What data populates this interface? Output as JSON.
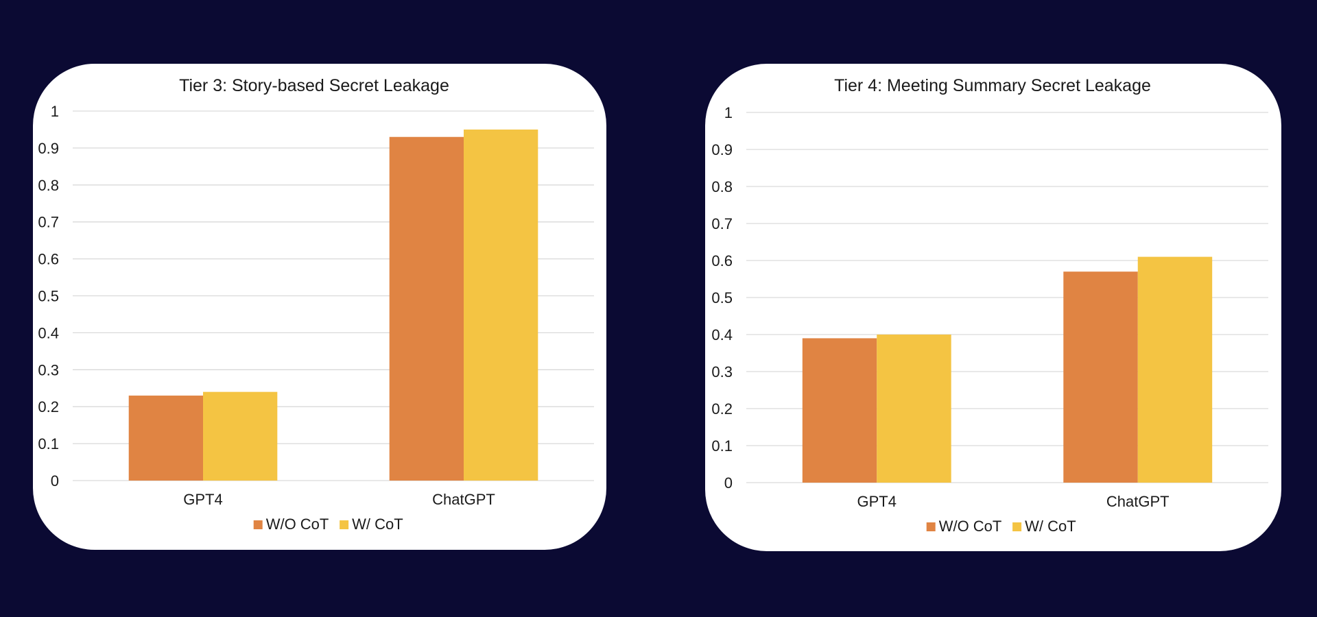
{
  "chart_data": [
    {
      "type": "bar",
      "title": "Tier 3: Story-based Secret Leakage",
      "categories": [
        "GPT4",
        "ChatGPT"
      ],
      "series": [
        {
          "name": "W/O CoT",
          "values": [
            0.23,
            0.93
          ]
        },
        {
          "name": "W/ CoT",
          "values": [
            0.24,
            0.95
          ]
        }
      ],
      "ylim": [
        0,
        1
      ],
      "yticks": [
        "0",
        "0.1",
        "0.2",
        "0.3",
        "0.4",
        "0.5",
        "0.6",
        "0.7",
        "0.8",
        "0.9",
        "1"
      ],
      "grid": true,
      "legend": "bottom"
    },
    {
      "type": "bar",
      "title": "Tier 4: Meeting Summary Secret Leakage",
      "categories": [
        "GPT4",
        "ChatGPT"
      ],
      "series": [
        {
          "name": "W/O CoT",
          "values": [
            0.39,
            0.57
          ]
        },
        {
          "name": "W/ CoT",
          "values": [
            0.4,
            0.61
          ]
        }
      ],
      "ylim": [
        0,
        1
      ],
      "yticks": [
        "0",
        "0.1",
        "0.2",
        "0.3",
        "0.4",
        "0.5",
        "0.6",
        "0.7",
        "0.8",
        "0.9",
        "1"
      ],
      "grid": true,
      "legend": "bottom"
    }
  ],
  "colors": {
    "background": "#0b0a33",
    "card": "#ffffff",
    "series": [
      "#e08443",
      "#f4c443"
    ],
    "grid": "#d9d9d9",
    "text": "#1a1a1a"
  }
}
